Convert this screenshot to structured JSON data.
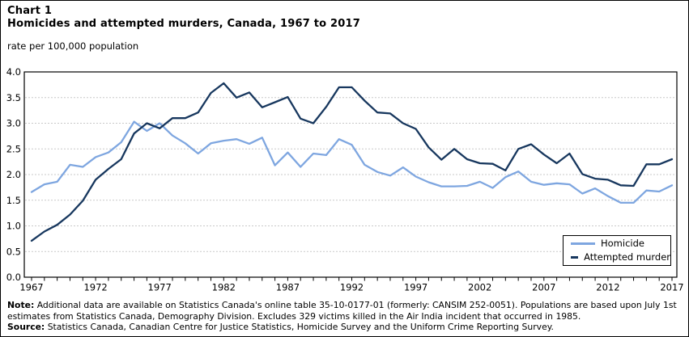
{
  "header": {
    "chart_label": "Chart 1"
  },
  "chart_data": {
    "type": "line",
    "title": "Homicides and attempted murders, Canada, 1967 to 2017",
    "ylabel": "rate per 100,000 population",
    "xlabel": "",
    "ylim": [
      0,
      4.0
    ],
    "y_ticks": [
      "0.0",
      "0.5",
      "1.0",
      "1.5",
      "2.0",
      "2.5",
      "3.0",
      "3.5",
      "4.0"
    ],
    "x_tick_labels": [
      "1967",
      "1972",
      "1977",
      "1982",
      "1987",
      "1992",
      "1997",
      "2002",
      "2007",
      "2012",
      "2017"
    ],
    "grid": "horizontal dashed every 0.5",
    "legend_position": "inside bottom-right",
    "x": [
      1967,
      1968,
      1969,
      1970,
      1971,
      1972,
      1973,
      1974,
      1975,
      1976,
      1977,
      1978,
      1979,
      1980,
      1981,
      1982,
      1983,
      1984,
      1985,
      1986,
      1987,
      1988,
      1989,
      1990,
      1991,
      1992,
      1993,
      1994,
      1995,
      1996,
      1997,
      1998,
      1999,
      2000,
      2001,
      2002,
      2003,
      2004,
      2005,
      2006,
      2007,
      2008,
      2009,
      2010,
      2011,
      2012,
      2013,
      2014,
      2015,
      2016,
      2017
    ],
    "series": [
      {
        "name": "Homicide",
        "color": "#7EA6E0",
        "values": [
          1.66,
          1.81,
          1.86,
          2.19,
          2.15,
          2.34,
          2.43,
          2.63,
          3.03,
          2.85,
          3.0,
          2.76,
          2.61,
          2.41,
          2.61,
          2.66,
          2.69,
          2.6,
          2.72,
          2.18,
          2.43,
          2.15,
          2.41,
          2.38,
          2.69,
          2.58,
          2.19,
          2.05,
          1.98,
          2.14,
          1.96,
          1.85,
          1.77,
          1.77,
          1.78,
          1.86,
          1.74,
          1.95,
          2.06,
          1.86,
          1.8,
          1.83,
          1.81,
          1.63,
          1.73,
          1.58,
          1.45,
          1.45,
          1.69,
          1.67,
          1.79
        ]
      },
      {
        "name": "Attempted murder",
        "color": "#17375E",
        "values": [
          0.71,
          0.89,
          1.02,
          1.22,
          1.49,
          1.9,
          2.11,
          2.3,
          2.8,
          3.0,
          2.9,
          3.1,
          3.1,
          3.21,
          3.59,
          3.78,
          3.5,
          3.6,
          3.31,
          3.41,
          3.51,
          3.09,
          3.0,
          3.32,
          3.7,
          3.7,
          3.44,
          3.21,
          3.19,
          3.0,
          2.89,
          2.53,
          2.29,
          2.5,
          2.3,
          2.22,
          2.21,
          2.08,
          2.5,
          2.59,
          2.39,
          2.22,
          2.41,
          2.01,
          1.92,
          1.9,
          1.79,
          1.78,
          2.2,
          2.2,
          2.3
        ]
      }
    ]
  },
  "notes": {
    "note_label": "Note:",
    "note_lines": [
      "Additional data are available on Statistics Canada's online table 35-10-0177-01 (formerly: CANSIM 252-0051). Populations are based upon July 1st",
      "estimates from Statistics Canada, Demography Division. Excludes 329 victims killed in the Air India incident that occurred in 1985."
    ],
    "source_label": "Source:",
    "source_text": "Statistics Canada, Canadian Centre for Justice Statistics, Homicide Survey and the Uniform Crime Reporting Survey."
  }
}
